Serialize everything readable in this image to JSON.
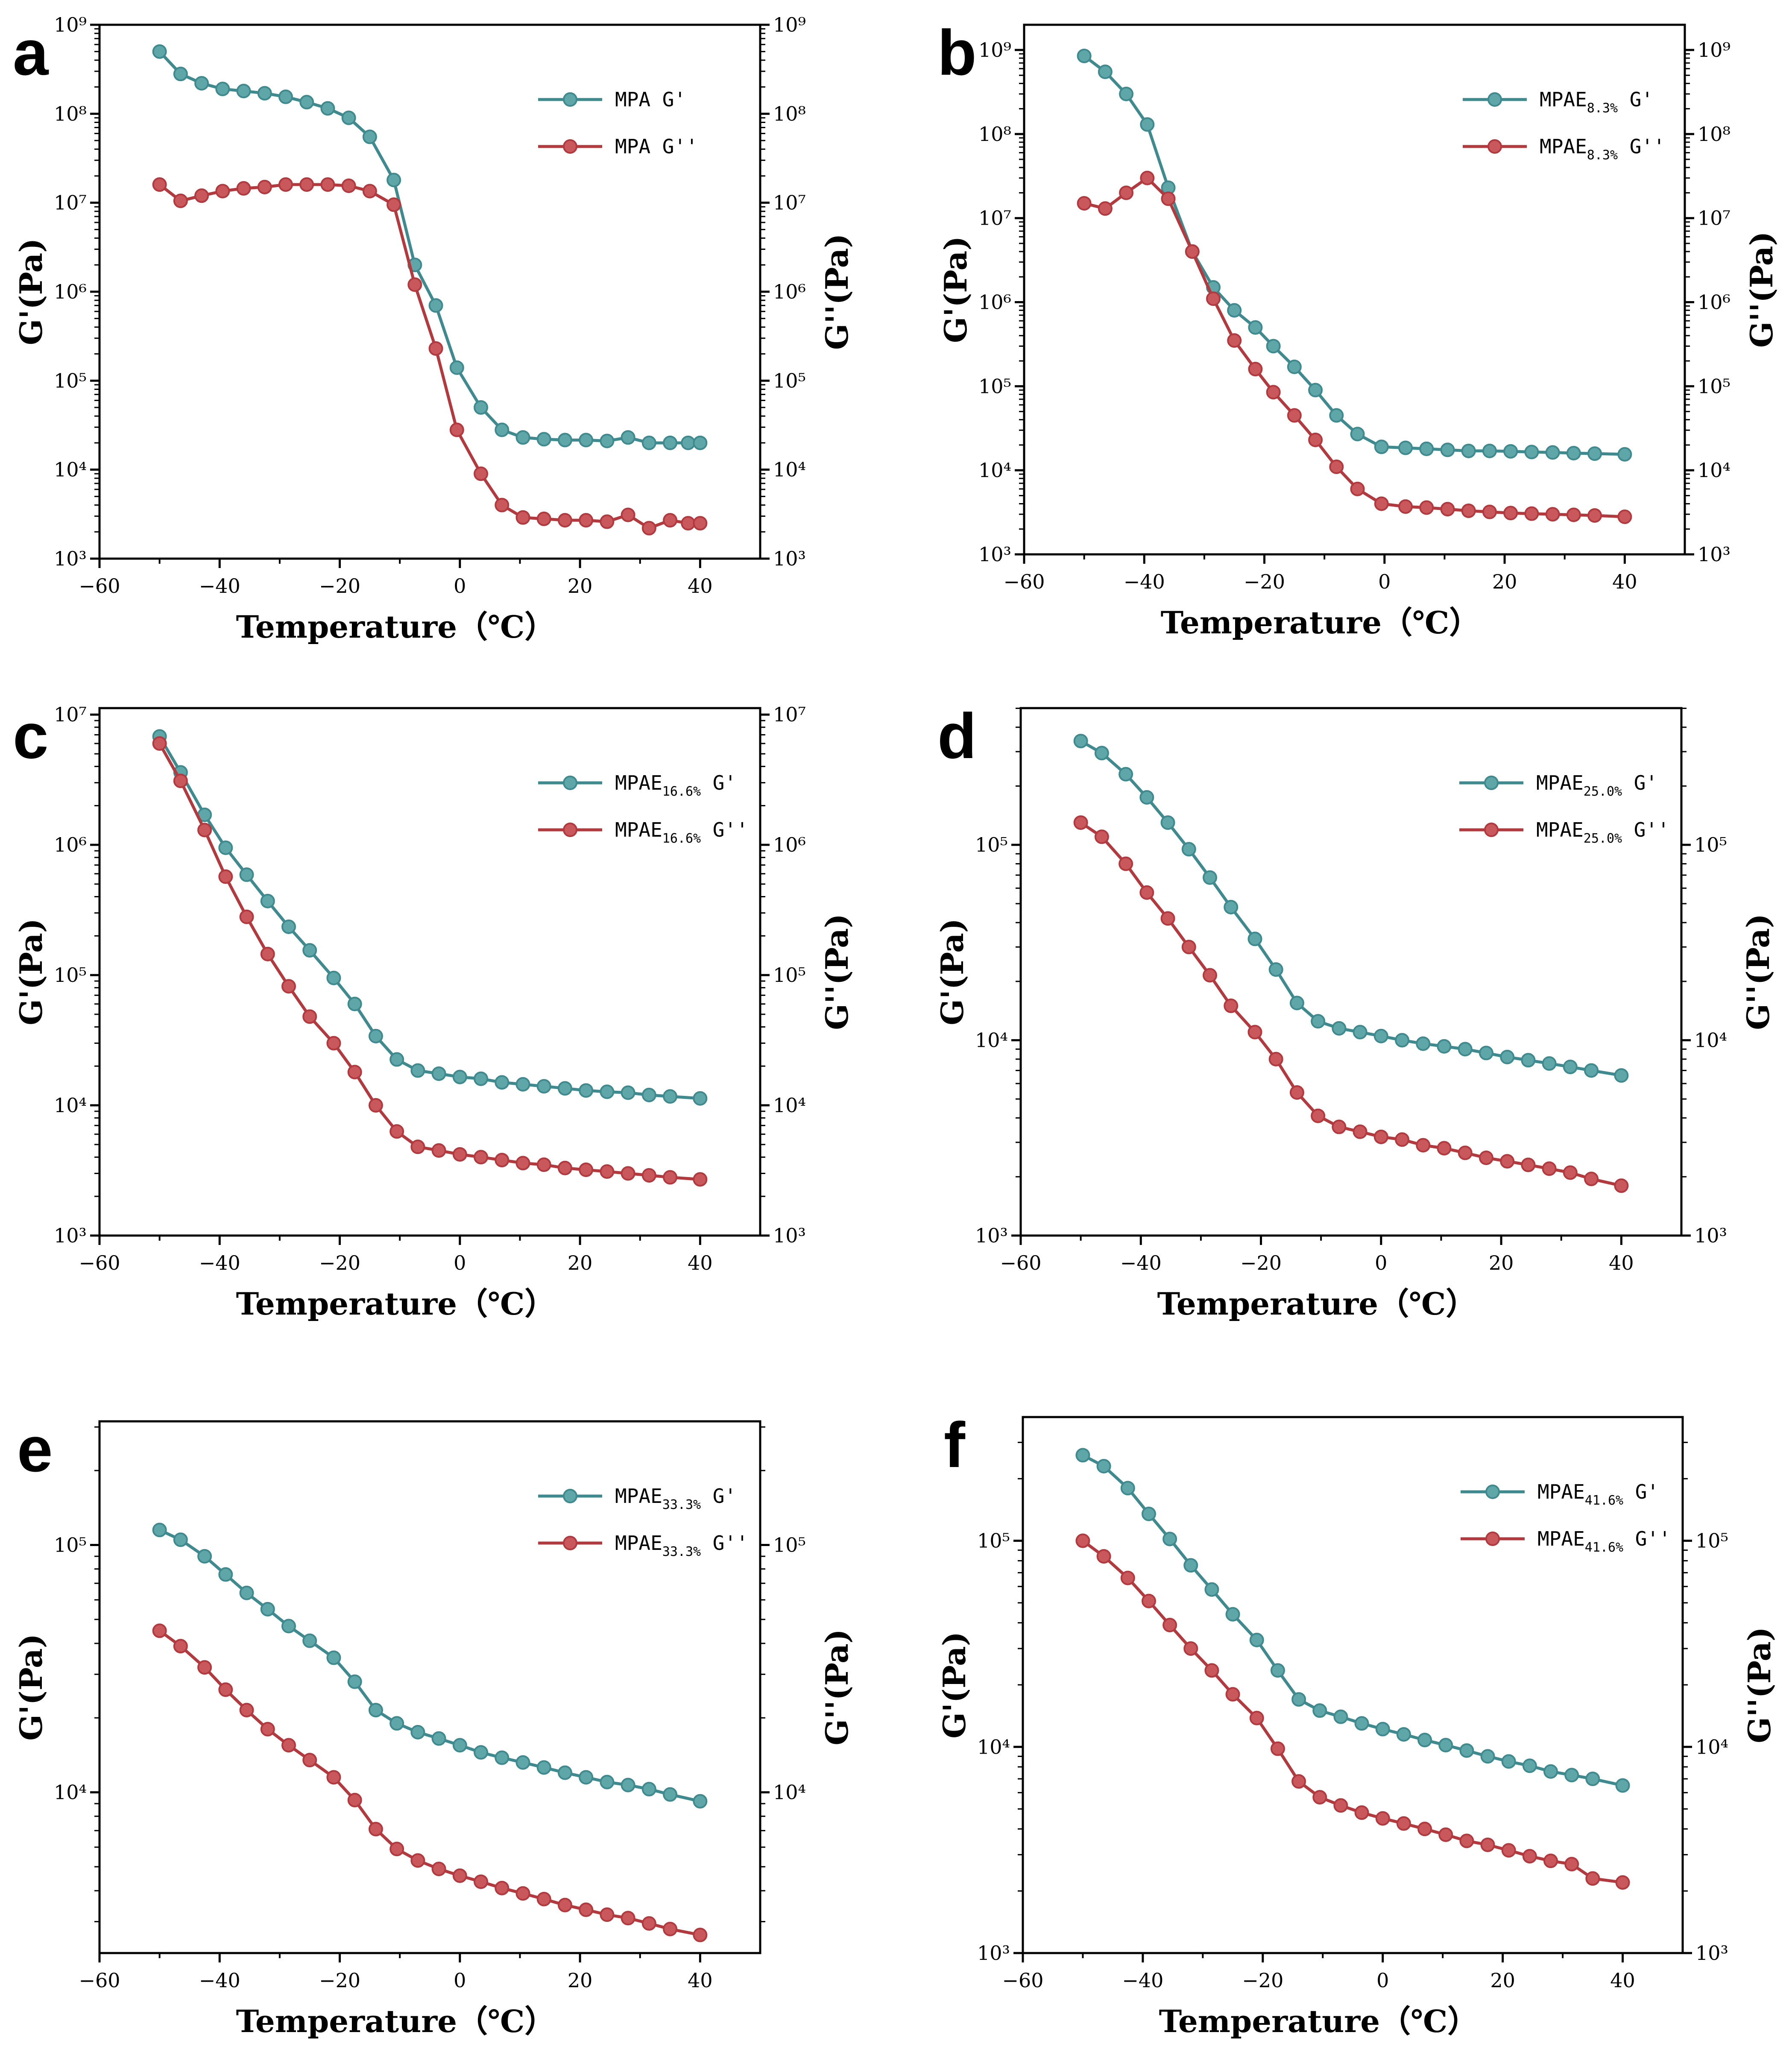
{
  "colors": {
    "gp": "#3f8a8e",
    "gpp": "#b23a3f",
    "marker_gp": "#5fa6a8",
    "marker_gpp": "#c9585c"
  },
  "chart_data": [
    {
      "panel": "a",
      "type": "line",
      "xlabel": "Temperature（℃）",
      "ylabel_left": "G'(Pa)",
      "ylabel_right": "G''(Pa)",
      "xlim": [
        -60,
        50
      ],
      "xticks": [
        -60,
        -40,
        -20,
        0,
        20,
        40
      ],
      "ylim_exp": [
        3,
        9
      ],
      "yticks_exp": [
        3,
        4,
        5,
        6,
        7,
        8,
        9
      ],
      "legend_position": "top-right",
      "series": [
        {
          "name": "MPA G'",
          "base": "MPA",
          "sub": "",
          "mod": "G'",
          "x": [
            -50,
            -46.5,
            -43,
            -39.5,
            -36,
            -32.5,
            -29,
            -25.5,
            -22,
            -18.5,
            -15,
            -11,
            -7.5,
            -4,
            -0.5,
            3.5,
            7,
            10.5,
            14,
            17.5,
            21,
            24.5,
            28,
            31.5,
            35,
            38,
            40
          ],
          "values": [
            500000000.0,
            280000000.0,
            220000000.0,
            190000000.0,
            180000000.0,
            170000000.0,
            155000000.0,
            135000000.0,
            115000000.0,
            90000000.0,
            55000000.0,
            18000000.0,
            2000000.0,
            700000.0,
            140000.0,
            50000.0,
            28000.0,
            23000.0,
            22000.0,
            21500.0,
            21500.0,
            21000.0,
            23000.0,
            20000.0,
            20000.0,
            20000.0,
            20000.0
          ]
        },
        {
          "name": "MPA G''",
          "base": "MPA",
          "sub": "",
          "mod": "G''",
          "x": [
            -50,
            -46.5,
            -43,
            -39.5,
            -36,
            -32.5,
            -29,
            -25.5,
            -22,
            -18.5,
            -15,
            -11,
            -7.5,
            -4,
            -0.5,
            3.5,
            7,
            10.5,
            14,
            17.5,
            21,
            24.5,
            28,
            31.5,
            35,
            38,
            40
          ],
          "values": [
            16000000.0,
            10500000.0,
            12000000.0,
            13500000.0,
            14500000.0,
            15000000.0,
            16000000.0,
            16000000.0,
            16000000.0,
            15500000.0,
            13500000.0,
            9500000.0,
            1200000.0,
            230000.0,
            28000.0,
            9000.0,
            4000.0,
            2900.0,
            2800.0,
            2700.0,
            2700.0,
            2600.0,
            3100.0,
            2200.0,
            2700.0,
            2500.0,
            2500.0
          ]
        }
      ]
    },
    {
      "panel": "b",
      "type": "line",
      "xlabel": "Temperature（℃）",
      "ylabel_left": "G'(Pa)",
      "ylabel_right": "G''(Pa)",
      "xlim": [
        -60,
        50
      ],
      "xticks": [
        -60,
        -40,
        -20,
        0,
        20,
        40
      ],
      "ylim_exp": [
        3,
        9.3
      ],
      "yticks_exp": [
        3,
        4,
        5,
        6,
        7,
        8,
        9
      ],
      "legend_position": "top-right",
      "series": [
        {
          "name": "MPAE8.3% G'",
          "base": "MPAE",
          "sub": "8.3%",
          "mod": "G'",
          "x": [
            -50,
            -46.5,
            -43,
            -39.5,
            -36,
            -32,
            -28.5,
            -25,
            -21.5,
            -18.5,
            -15,
            -11.5,
            -8,
            -4.5,
            -0.5,
            3.5,
            7,
            10.5,
            14,
            17.5,
            21,
            24.5,
            28,
            31.5,
            35,
            40
          ],
          "values": [
            850000000.0,
            550000000.0,
            300000000.0,
            130000000.0,
            23000000.0,
            4000000.0,
            1500000.0,
            800000.0,
            500000.0,
            300000.0,
            170000.0,
            90000.0,
            45000.0,
            27000.0,
            19000.0,
            18500.0,
            18000.0,
            17500.0,
            17000.0,
            17000.0,
            16800.0,
            16500.0,
            16300.0,
            16000.0,
            15800.0,
            15500.0
          ]
        },
        {
          "name": "MPAE8.3% G''",
          "base": "MPAE",
          "sub": "8.3%",
          "mod": "G''",
          "x": [
            -50,
            -46.5,
            -43,
            -39.5,
            -36,
            -32,
            -28.5,
            -25,
            -21.5,
            -18.5,
            -15,
            -11.5,
            -8,
            -4.5,
            -0.5,
            3.5,
            7,
            10.5,
            14,
            17.5,
            21,
            24.5,
            28,
            31.5,
            35,
            40
          ],
          "values": [
            15000000.0,
            13000000.0,
            20000000.0,
            30000000.0,
            17000000.0,
            4000000.0,
            1100000.0,
            350000.0,
            160000.0,
            85000.0,
            45000.0,
            23000.0,
            11000.0,
            6000.0,
            4000.0,
            3700.0,
            3600.0,
            3450.0,
            3300.0,
            3200.0,
            3100.0,
            3050.0,
            3000.0,
            2950.0,
            2900.0,
            2800.0
          ]
        }
      ]
    },
    {
      "panel": "c",
      "type": "line",
      "xlabel": "Temperature（℃）",
      "ylabel_left": "G'(Pa)",
      "ylabel_right": "G''(Pa)",
      "xlim": [
        -60,
        50
      ],
      "xticks": [
        -60,
        -40,
        -20,
        0,
        20,
        40
      ],
      "ylim_exp": [
        3,
        7.05
      ],
      "yticks_exp": [
        3,
        4,
        5,
        6,
        7
      ],
      "legend_position": "top-right",
      "series": [
        {
          "name": "MPAE16.6% G'",
          "base": "MPAE",
          "sub": "16.6%",
          "mod": "G'",
          "x": [
            -50,
            -46.5,
            -42.5,
            -39,
            -35.5,
            -32,
            -28.5,
            -25,
            -21,
            -17.5,
            -14,
            -10.5,
            -7,
            -3.5,
            0,
            3.5,
            7,
            10.5,
            14,
            17.5,
            21,
            24.5,
            28,
            31.5,
            35,
            40
          ],
          "values": [
            6800000.0,
            3600000.0,
            1700000.0,
            950000.0,
            590000.0,
            370000.0,
            235000.0,
            155000.0,
            95000.0,
            60000.0,
            34000.0,
            22500.0,
            18500.0,
            17500.0,
            16500.0,
            16000.0,
            15000.0,
            14500.0,
            14000.0,
            13500.0,
            13000.0,
            12700.0,
            12500.0,
            12000.0,
            11700.0,
            11300.0
          ]
        },
        {
          "name": "MPAE16.6% G''",
          "base": "MPAE",
          "sub": "16.6%",
          "mod": "G''",
          "x": [
            -50,
            -46.5,
            -42.5,
            -39,
            -35.5,
            -32,
            -28.5,
            -25,
            -21,
            -17.5,
            -14,
            -10.5,
            -7,
            -3.5,
            0,
            3.5,
            7,
            10.5,
            14,
            17.5,
            21,
            24.5,
            28,
            31.5,
            35,
            40
          ],
          "values": [
            6000000.0,
            3100000.0,
            1300000.0,
            570000.0,
            280000.0,
            145000.0,
            82000.0,
            48000.0,
            30000.0,
            18000.0,
            10000.0,
            6300.0,
            4800.0,
            4500.0,
            4200.0,
            4000.0,
            3800.0,
            3600.0,
            3500.0,
            3300.0,
            3200.0,
            3100.0,
            3000.0,
            2900.0,
            2800.0,
            2700.0
          ]
        }
      ]
    },
    {
      "panel": "d",
      "type": "line",
      "xlabel": "Temperature（℃）",
      "ylabel_left": "G'(Pa)",
      "ylabel_right": "G''(Pa)",
      "xlim": [
        -60,
        50
      ],
      "xticks": [
        -60,
        -40,
        -20,
        0,
        20,
        40
      ],
      "ylim_exp": [
        3,
        5.7
      ],
      "yticks_exp": [
        3,
        4,
        5
      ],
      "legend_position": "top-right",
      "series": [
        {
          "name": "MPAE25.0% G'",
          "base": "MPAE",
          "sub": "25.0%",
          "mod": "G'",
          "x": [
            -50,
            -46.5,
            -42.5,
            -39,
            -35.5,
            -32,
            -28.5,
            -25,
            -21,
            -17.5,
            -14,
            -10.5,
            -7,
            -3.5,
            0,
            3.5,
            7,
            10.5,
            14,
            17.5,
            21,
            24.5,
            28,
            31.5,
            35,
            40
          ],
          "values": [
            340000.0,
            295000.0,
            230000.0,
            175000.0,
            130000.0,
            95000.0,
            68000.0,
            48000.0,
            33000.0,
            23000.0,
            15500.0,
            12500.0,
            11500.0,
            11000.0,
            10500.0,
            10000.0,
            9600.0,
            9300.0,
            9000.0,
            8600.0,
            8200.0,
            7900.0,
            7600.0,
            7300.0,
            7000.0,
            6600.0
          ]
        },
        {
          "name": "MPAE25.0% G''",
          "base": "MPAE",
          "sub": "25.0%",
          "mod": "G''",
          "x": [
            -50,
            -46.5,
            -42.5,
            -39,
            -35.5,
            -32,
            -28.5,
            -25,
            -21,
            -17.5,
            -14,
            -10.5,
            -7,
            -3.5,
            0,
            3.5,
            7,
            10.5,
            14,
            17.5,
            21,
            24.5,
            28,
            31.5,
            35,
            40
          ],
          "values": [
            130000.0,
            110000.0,
            80000.0,
            57000.0,
            42000.0,
            30000.0,
            21500.0,
            15000.0,
            11000.0,
            8000.0,
            5400.0,
            4100.0,
            3600.0,
            3400.0,
            3200.0,
            3100.0,
            2900.0,
            2800.0,
            2650.0,
            2500.0,
            2400.0,
            2300.0,
            2200.0,
            2100.0,
            1950.0,
            1800.0
          ]
        }
      ]
    },
    {
      "panel": "e",
      "type": "line",
      "xlabel": "Temperature（℃）",
      "ylabel_left": "G'(Pa)",
      "ylabel_right": "G''(Pa)",
      "xlim": [
        -60,
        50
      ],
      "xticks": [
        -60,
        -40,
        -20,
        0,
        20,
        40
      ],
      "ylim_exp": [
        3.35,
        5.5
      ],
      "yticks_exp": [
        4,
        5
      ],
      "legend_position": "top-right",
      "series": [
        {
          "name": "MPAE33.3% G'",
          "base": "MPAE",
          "sub": "33.3%",
          "mod": "G'",
          "x": [
            -50,
            -46.5,
            -42.5,
            -39,
            -35.5,
            -32,
            -28.5,
            -25,
            -21,
            -17.5,
            -14,
            -10.5,
            -7,
            -3.5,
            0,
            3.5,
            7,
            10.5,
            14,
            17.5,
            21,
            24.5,
            28,
            31.5,
            35,
            40
          ],
          "values": [
            115000.0,
            105000.0,
            90000.0,
            76000.0,
            64000.0,
            55000.0,
            47000.0,
            41000.0,
            35000.0,
            28000.0,
            21500.0,
            19000.0,
            17500.0,
            16500.0,
            15500.0,
            14500.0,
            13800.0,
            13200.0,
            12600.0,
            12000.0,
            11500.0,
            11000.0,
            10700.0,
            10300.0,
            9800.0,
            9200.0
          ]
        },
        {
          "name": "MPAE33.3% G''",
          "base": "MPAE",
          "sub": "33.3%",
          "mod": "G''",
          "x": [
            -50,
            -46.5,
            -42.5,
            -39,
            -35.5,
            -32,
            -28.5,
            -25,
            -21,
            -17.5,
            -14,
            -10.5,
            -7,
            -3.5,
            0,
            3.5,
            7,
            10.5,
            14,
            17.5,
            21,
            24.5,
            28,
            31.5,
            35,
            40
          ],
          "values": [
            45000.0,
            39000.0,
            32000.0,
            26000.0,
            21500.0,
            18000.0,
            15500.0,
            13500.0,
            11500.0,
            9300.0,
            7100.0,
            5900.0,
            5300.0,
            4900.0,
            4600.0,
            4350.0,
            4100.0,
            3900.0,
            3700.0,
            3500.0,
            3350.0,
            3200.0,
            3100.0,
            2950.0,
            2800.0,
            2650.0
          ]
        }
      ]
    },
    {
      "panel": "f",
      "type": "line",
      "xlabel": "Temperature（℃）",
      "ylabel_left": "G'(Pa)",
      "ylabel_right": "G''(Pa)",
      "xlim": [
        -60,
        50
      ],
      "xticks": [
        -60,
        -40,
        -20,
        0,
        20,
        40
      ],
      "ylim_exp": [
        3,
        5.6
      ],
      "yticks_exp": [
        3,
        4,
        5
      ],
      "legend_position": "top-right",
      "series": [
        {
          "name": "MPAE41.6% G'",
          "base": "MPAE",
          "sub": "41.6%",
          "mod": "G'",
          "x": [
            -50,
            -46.5,
            -42.5,
            -39,
            -35.5,
            -32,
            -28.5,
            -25,
            -21,
            -17.5,
            -14,
            -10.5,
            -7,
            -3.5,
            0,
            3.5,
            7,
            10.5,
            14,
            17.5,
            21,
            24.5,
            28,
            31.5,
            35,
            40
          ],
          "values": [
            260000.0,
            230000.0,
            180000.0,
            135000.0,
            102000.0,
            76000.0,
            58000.0,
            44000.0,
            33000.0,
            23500.0,
            17000.0,
            15000.0,
            14000.0,
            13000.0,
            12200.0,
            11500.0,
            10800.0,
            10200.0,
            9600.0,
            9000.0,
            8500.0,
            8100.0,
            7600.0,
            7300.0,
            7000.0,
            6500.0
          ]
        },
        {
          "name": "MPAE41.6% G''",
          "base": "MPAE",
          "sub": "41.6%",
          "mod": "G''",
          "x": [
            -50,
            -46.5,
            -42.5,
            -39,
            -35.5,
            -32,
            -28.5,
            -25,
            -21,
            -17.5,
            -14,
            -10.5,
            -7,
            -3.5,
            0,
            3.5,
            7,
            10.5,
            14,
            17.5,
            21,
            24.5,
            28,
            31.5,
            35,
            40
          ],
          "values": [
            100000.0,
            84000.0,
            66000.0,
            51000.0,
            39000.0,
            30000.0,
            23500.0,
            18000.0,
            13800.0,
            9800.0,
            6800.0,
            5700.0,
            5200.0,
            4800.0,
            4500.0,
            4250.0,
            4000.0,
            3750.0,
            3500.0,
            3350.0,
            3150.0,
            2950.0,
            2800.0,
            2700.0,
            2300.0,
            2200.0
          ]
        }
      ]
    }
  ]
}
